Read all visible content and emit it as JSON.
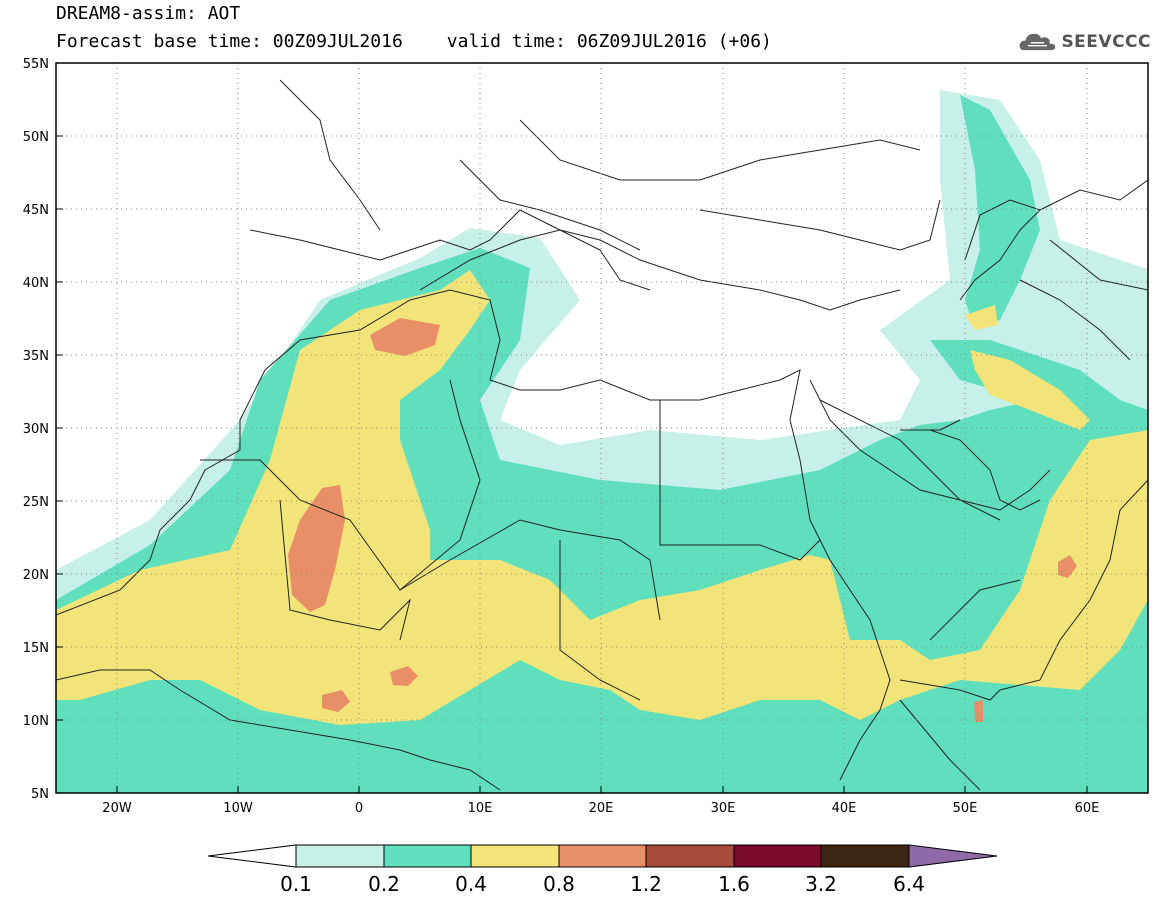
{
  "header": {
    "title": "DREAM8-assim: AOT",
    "base_time_label": "Forecast base time: 00Z09JUL2016",
    "valid_time_label": "valid time: 06Z09JUL2016 (+06)",
    "logo_text": "SEEVCCC"
  },
  "map": {
    "lon_range": [
      -25,
      65
    ],
    "lat_range": [
      5,
      55
    ],
    "lon_ticks": [
      "20W",
      "10W",
      "0",
      "10E",
      "20E",
      "30E",
      "40E",
      "50E",
      "60E"
    ],
    "lat_ticks": [
      "55N",
      "50N",
      "45N",
      "40N",
      "35N",
      "30N",
      "25N",
      "20N",
      "15N",
      "10N",
      "5N"
    ]
  },
  "colorbar": {
    "levels": [
      "0.1",
      "0.2",
      "0.4",
      "0.8",
      "1.2",
      "1.6",
      "3.2",
      "6.4"
    ],
    "colors": [
      "#ffffff",
      "#c6f0e8",
      "#5fdfbc",
      "#f3e47a",
      "#e98f68",
      "#a84a3a",
      "#7a0a2a",
      "#3e2412",
      "#8f6aa8"
    ]
  }
}
